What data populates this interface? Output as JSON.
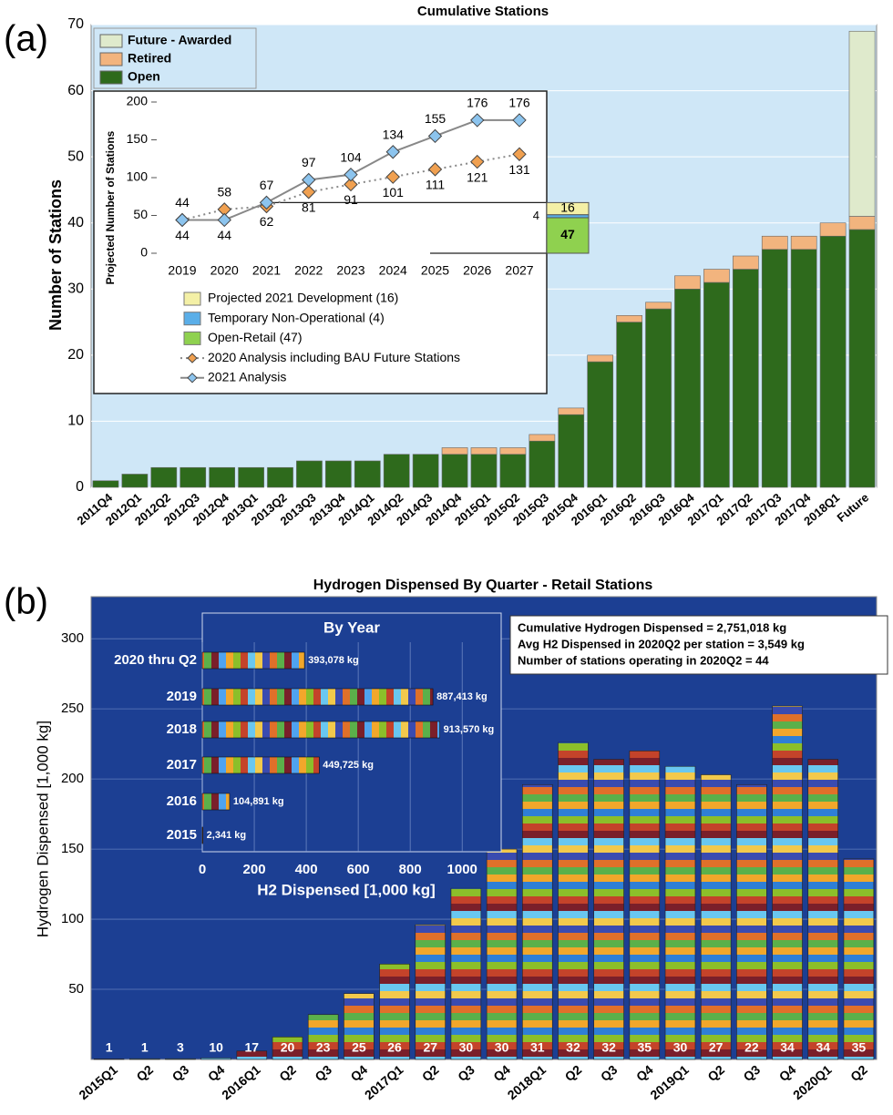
{
  "panel_labels": [
    "(a)",
    "(b)"
  ],
  "chart_data": [
    {
      "type": "stacked-bar",
      "title": "Cumulative Stations",
      "ylabel": "Number of Stations",
      "categories": [
        "2011Q4",
        "2012Q1",
        "2012Q2",
        "2012Q3",
        "2012Q4",
        "2013Q1",
        "2013Q2",
        "2013Q3",
        "2013Q4",
        "2014Q1",
        "2014Q2",
        "2014Q3",
        "2014Q4",
        "2015Q1",
        "2015Q2",
        "2015Q3",
        "2015Q4",
        "2016Q1",
        "2016Q2",
        "2016Q3",
        "2016Q4",
        "2017Q1",
        "2017Q2",
        "2017Q3",
        "2017Q4",
        "2018Q1",
        "Future"
      ],
      "series": [
        {
          "name": "Open",
          "color": "#2e6a1c",
          "values": [
            1,
            2,
            3,
            3,
            3,
            3,
            3,
            4,
            4,
            4,
            5,
            5,
            5,
            5,
            5,
            7,
            11,
            19,
            25,
            27,
            30,
            31,
            33,
            36,
            36,
            38,
            39
          ]
        },
        {
          "name": "Retired",
          "color": "#f2b47e",
          "values": [
            0,
            0,
            0,
            0,
            0,
            0,
            0,
            0,
            0,
            0,
            0,
            0,
            1,
            1,
            1,
            1,
            1,
            1,
            1,
            1,
            2,
            2,
            2,
            2,
            2,
            2,
            2
          ]
        },
        {
          "name": "Future - Awarded",
          "color": "#dfeacc",
          "values": [
            0,
            0,
            0,
            0,
            0,
            0,
            0,
            0,
            0,
            0,
            0,
            0,
            0,
            0,
            0,
            0,
            0,
            0,
            0,
            0,
            0,
            0,
            0,
            0,
            0,
            0,
            28
          ]
        }
      ],
      "ylim": [
        0,
        70
      ],
      "yticks": [
        0,
        10,
        20,
        30,
        40,
        50,
        60,
        70
      ],
      "grid": true,
      "background": "#cfe7f7",
      "legend": "top-left"
    },
    {
      "type": "line",
      "ylabel": "Projected Number of  Stations",
      "categories": [
        "2019",
        "2020",
        "2021",
        "2022",
        "2023",
        "2024",
        "2025",
        "2026",
        "2027"
      ],
      "series": [
        {
          "name": "2020 Analysis including BAU Future Stations",
          "color": "#f0a050",
          "line_color": "#888888",
          "dash": true,
          "values": [
            44,
            58,
            62,
            81,
            91,
            101,
            111,
            121,
            131
          ]
        },
        {
          "name": "2021 Analysis",
          "color": "#8cc4ee",
          "line_color": "#888888",
          "dash": false,
          "values": [
            44,
            44,
            67,
            97,
            104,
            134,
            155,
            176,
            176
          ]
        }
      ],
      "stack": [
        {
          "name": "Open-Retail (47)",
          "color": "#8fd14f",
          "value": 47
        },
        {
          "name": "Temporary Non-Operational (4)",
          "color": "#5aaee8",
          "value": 4
        },
        {
          "name": "Projected 2021 Development (16)",
          "color": "#f4f0a6",
          "value": 16
        }
      ],
      "ylim": [
        0,
        200
      ],
      "yticks": [
        0,
        50,
        100,
        150,
        200
      ],
      "grid": false
    },
    {
      "type": "bar",
      "title": "Hydrogen Dispensed By Quarter - Retail Stations",
      "ylabel": "Hydrogen Dispensed [1,000 kg]",
      "categories": [
        "2015Q1",
        "Q2",
        "Q3",
        "Q4",
        "2016Q1",
        "Q2",
        "Q3",
        "Q4",
        "2017Q1",
        "Q2",
        "Q3",
        "Q4",
        "2018Q1",
        "Q2",
        "Q3",
        "Q4",
        "2019Q1",
        "Q2",
        "Q3",
        "Q4",
        "2020Q1",
        "Q2"
      ],
      "values": [
        0.3,
        0.5,
        0.5,
        1,
        6,
        16,
        32,
        47,
        68,
        96,
        122,
        150,
        196,
        226,
        214,
        220,
        209,
        203,
        196,
        252,
        214,
        143
      ],
      "station_counts": [
        1,
        1,
        3,
        10,
        17,
        20,
        23,
        25,
        26,
        27,
        30,
        30,
        31,
        32,
        32,
        35,
        30,
        27,
        22,
        34,
        34,
        35
      ],
      "annotations": [
        "Cumulative Hydrogen Dispensed = 2,751,018 kg",
        "Avg H2 Dispensed in 2020Q2 per station = 3,549 kg",
        "Number of stations operating in 2020Q2 = 44"
      ],
      "ylim": [
        0,
        330
      ],
      "yticks": [
        50,
        100,
        150,
        200,
        250,
        300
      ],
      "grid": true,
      "background": "#1c3f93"
    },
    {
      "type": "hbar",
      "title": "By Year",
      "xlabel": "H2 Dispensed [1,000 kg]",
      "categories": [
        "2020 thru Q2",
        "2019",
        "2018",
        "2017",
        "2016",
        "2015"
      ],
      "values": [
        393.078,
        887.413,
        913.57,
        449.725,
        104.891,
        2.341
      ],
      "value_labels": [
        "393,078 kg",
        "887,413 kg",
        "913,570 kg",
        "449,725 kg",
        "104,891 kg",
        "2,341 kg"
      ],
      "xlim": [
        0,
        1150
      ],
      "xticks": [
        0,
        200,
        400,
        600,
        800,
        1000
      ],
      "grid": true
    }
  ]
}
